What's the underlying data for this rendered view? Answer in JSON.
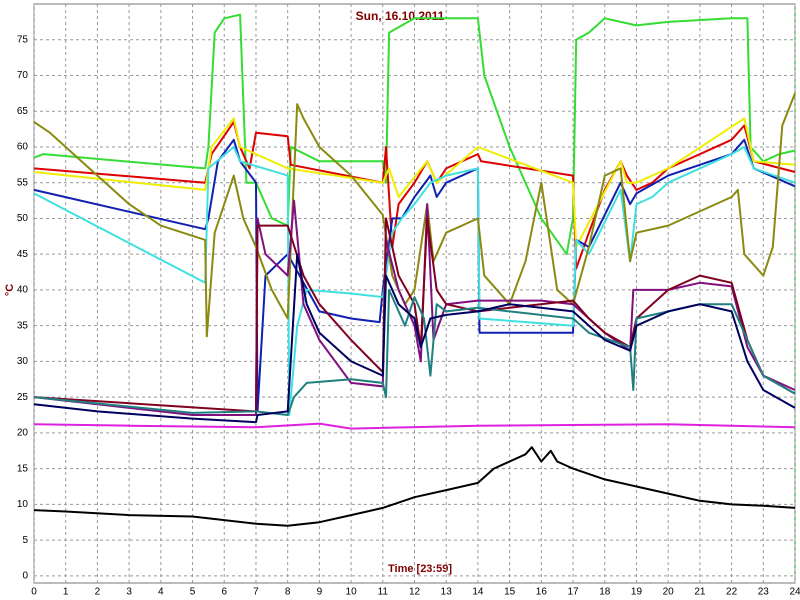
{
  "chart_data": {
    "type": "line",
    "title": "Sun, 16.10.2011",
    "xlabel": "Time [23:59]",
    "ylabel": "°C",
    "xlim": [
      0,
      24
    ],
    "xticks": [
      0,
      1,
      2,
      3,
      4,
      5,
      6,
      7,
      8,
      9,
      10,
      11,
      12,
      13,
      14,
      15,
      16,
      17,
      18,
      19,
      20,
      21,
      22,
      23,
      24
    ],
    "ylim": [
      -1,
      80
    ],
    "yticks": [
      0,
      5,
      10,
      15,
      20,
      25,
      30,
      35,
      40,
      45,
      50,
      55,
      60,
      65,
      70,
      75
    ],
    "grid": true,
    "series": [
      {
        "color": "#33dd33",
        "x": [
          0,
          0.3,
          5.4,
          5.5,
          5.7,
          6,
          6.5,
          6.7,
          7,
          7.5,
          8,
          8.1,
          9,
          11,
          11.1,
          11.2,
          12,
          14,
          14.2,
          15,
          16,
          16.8,
          17,
          17.1,
          17.5,
          18,
          19,
          20,
          22,
          22.5,
          22.6,
          23,
          23.5,
          24
        ],
        "values": [
          58.5,
          59,
          57,
          60,
          76,
          78,
          78.5,
          55,
          55,
          50,
          49,
          60,
          58,
          58,
          55,
          76,
          78,
          78,
          70,
          60,
          50,
          45,
          50,
          75,
          76,
          78,
          77,
          77.5,
          78,
          78,
          60,
          58,
          59,
          59.5
        ]
      },
      {
        "color": "#dd0000",
        "x": [
          0,
          5.4,
          5.6,
          6.3,
          6.5,
          6.8,
          7,
          8,
          8.1,
          11,
          11.1,
          11.3,
          11.5,
          12,
          12.4,
          12.7,
          13,
          14,
          14.1,
          17,
          17.1,
          17.5,
          18,
          18.5,
          18.7,
          19,
          19.5,
          20,
          22,
          22.4,
          22.7,
          24
        ],
        "values": [
          57,
          55,
          59,
          63.5,
          60,
          57,
          62,
          61.5,
          57.5,
          55,
          60,
          46,
          52,
          55,
          58,
          55,
          57,
          59,
          58,
          56,
          43,
          48,
          54,
          58,
          56,
          54,
          55,
          57,
          61,
          63,
          58,
          56.5
        ]
      },
      {
        "color": "#eeee00",
        "x": [
          0,
          5.4,
          5.6,
          6.3,
          6.5,
          8,
          11,
          11.2,
          11.5,
          12.4,
          12.7,
          14,
          17,
          17.1,
          18.5,
          18.7,
          19,
          20,
          22.4,
          22.7,
          24
        ],
        "values": [
          56.5,
          54,
          60,
          64,
          60,
          57,
          55,
          57,
          53,
          58,
          55,
          60,
          55,
          46,
          58,
          55,
          55,
          57,
          64,
          58,
          57.5
        ]
      },
      {
        "color": "#1020b0",
        "x": [
          0,
          5.4,
          5.5,
          5.8,
          6.3,
          6.5,
          7,
          7.05,
          7.3,
          8,
          9,
          10,
          10.9,
          11,
          11.3,
          11.6,
          12,
          12.5,
          12.7,
          13,
          14,
          14.05,
          17,
          17.1,
          17.5,
          18.5,
          18.8,
          19,
          20,
          22,
          22.4,
          22.7,
          24
        ],
        "values": [
          54,
          48.5,
          50,
          58,
          61,
          58,
          55,
          23,
          42,
          45,
          37,
          36,
          35.5,
          40,
          50,
          50,
          53,
          56,
          53,
          55,
          57,
          34,
          34,
          47,
          46,
          55,
          52,
          53.5,
          56,
          59,
          61,
          57,
          54.5
        ]
      },
      {
        "color": "#40e0e0",
        "x": [
          0,
          5.4,
          5.5,
          6.3,
          6.5,
          8,
          8.05,
          8.3,
          8.6,
          10,
          11,
          11.3,
          11.6,
          12,
          12.5,
          13,
          14,
          14.05,
          17,
          17.1,
          17.5,
          18.5,
          18.8,
          19,
          19.5,
          20,
          22,
          22.4,
          22.7,
          24
        ],
        "values": [
          53.5,
          41,
          57,
          60,
          58,
          56,
          22.5,
          35,
          40,
          39.5,
          39,
          48,
          50,
          52,
          55,
          56,
          57,
          36,
          35,
          47,
          45,
          54,
          44,
          52,
          53,
          55,
          59,
          60,
          57,
          55
        ]
      },
      {
        "color": "#8a8a10",
        "x": [
          0,
          0.5,
          1,
          2,
          3,
          4,
          5.4,
          5.45,
          5.7,
          6.3,
          6.6,
          7,
          7.5,
          8,
          8.3,
          8.5,
          9,
          10,
          11,
          11.3,
          11.7,
          12,
          12.4,
          12.6,
          13,
          14,
          14.2,
          15,
          15.5,
          16,
          16.5,
          17,
          17.5,
          18,
          18.5,
          18.8,
          19,
          20,
          22,
          22.2,
          22.4,
          23,
          23.3,
          23.6,
          24
        ],
        "values": [
          63.5,
          62,
          60,
          56,
          52,
          49,
          47,
          33.5,
          48,
          56,
          50,
          46,
          40,
          36,
          66,
          64,
          60,
          56,
          50.5,
          42,
          38,
          40,
          52,
          44,
          48,
          50,
          42,
          38,
          44,
          55,
          40,
          38,
          46,
          56,
          57,
          44,
          48,
          49,
          53,
          54,
          45,
          42,
          46,
          63,
          67.5
        ]
      },
      {
        "color": "#801080",
        "x": [
          0,
          5,
          7,
          7.05,
          7.3,
          8,
          8.2,
          8.5,
          9,
          10,
          11,
          11.1,
          11.5,
          12,
          12.2,
          12.4,
          12.6,
          13,
          14,
          15,
          16,
          17,
          17.5,
          18,
          18.8,
          18.9,
          19,
          20,
          21,
          22,
          22.5,
          23,
          24
        ],
        "values": [
          25,
          22.5,
          22.5,
          50,
          45,
          42,
          52.5,
          38,
          33,
          27,
          26.5,
          47,
          40,
          35,
          30,
          52,
          33,
          38,
          38.5,
          38.5,
          38.5,
          38,
          36,
          34,
          31.5,
          40,
          40,
          40,
          41,
          40.5,
          32,
          28,
          26
        ]
      },
      {
        "color": "#800020",
        "x": [
          0,
          7,
          7.05,
          8,
          8.5,
          9,
          10,
          11,
          11.1,
          11.5,
          12,
          12.2,
          12.4,
          12.7,
          13,
          14,
          15,
          17,
          17.5,
          18,
          18.8,
          19,
          20,
          21,
          22,
          22.5,
          23,
          24
        ],
        "values": [
          25,
          23,
          49,
          49,
          42,
          38,
          33,
          28.5,
          50,
          42,
          38,
          32,
          50,
          40,
          38,
          37,
          37.5,
          38.5,
          36,
          34,
          32,
          36,
          40,
          42,
          41,
          33,
          28,
          25.5
        ]
      },
      {
        "color": "#208080",
        "x": [
          0,
          5,
          7,
          8,
          8.2,
          8.6,
          10,
          11,
          11.1,
          11.2,
          11.7,
          12,
          12.3,
          12.5,
          12.7,
          13,
          14,
          15,
          17,
          17.5,
          18.8,
          18.9,
          19,
          20,
          21,
          22,
          22.5,
          23,
          24
        ],
        "values": [
          25,
          22.8,
          23,
          22.5,
          25,
          27,
          27.5,
          27,
          25,
          40,
          35,
          39,
          36,
          28,
          38,
          37,
          37.5,
          37,
          36,
          34,
          32,
          26,
          36,
          37,
          38,
          38,
          33,
          28,
          25.5
        ]
      },
      {
        "color": "#000060",
        "x": [
          0,
          2,
          5,
          7,
          7.05,
          8,
          8.3,
          8.6,
          9,
          10,
          11,
          11.1,
          11.5,
          12,
          12.2,
          12.5,
          13,
          14,
          15,
          17,
          18,
          18.8,
          19,
          20,
          21,
          22,
          22.5,
          23,
          24
        ],
        "values": [
          24,
          23,
          22,
          21.5,
          22.5,
          23,
          45,
          38,
          34,
          30,
          28,
          42,
          38,
          36,
          32,
          36,
          36.5,
          37,
          38,
          37,
          33,
          31.5,
          35,
          37,
          38,
          37,
          30,
          26,
          23.5
        ]
      },
      {
        "color": "#e020e0",
        "x": [
          0,
          3,
          7,
          9,
          10,
          14,
          20,
          24
        ],
        "values": [
          21.2,
          21,
          20.8,
          21.3,
          20.6,
          21,
          21.2,
          20.8
        ]
      },
      {
        "color": "#000000",
        "x": [
          0,
          1,
          3,
          5,
          7,
          8,
          9,
          10,
          11,
          12,
          13,
          14,
          14.5,
          15,
          15.5,
          15.7,
          16,
          16.3,
          16.5,
          17,
          18,
          19,
          20,
          21,
          22,
          23,
          24
        ],
        "values": [
          9.2,
          9,
          8.5,
          8.3,
          7.3,
          7,
          7.5,
          8.5,
          9.5,
          11,
          12,
          13,
          15,
          16,
          17,
          18,
          16,
          17.5,
          16,
          15,
          13.5,
          12.5,
          11.5,
          10.5,
          10,
          9.8,
          9.5
        ]
      }
    ]
  }
}
